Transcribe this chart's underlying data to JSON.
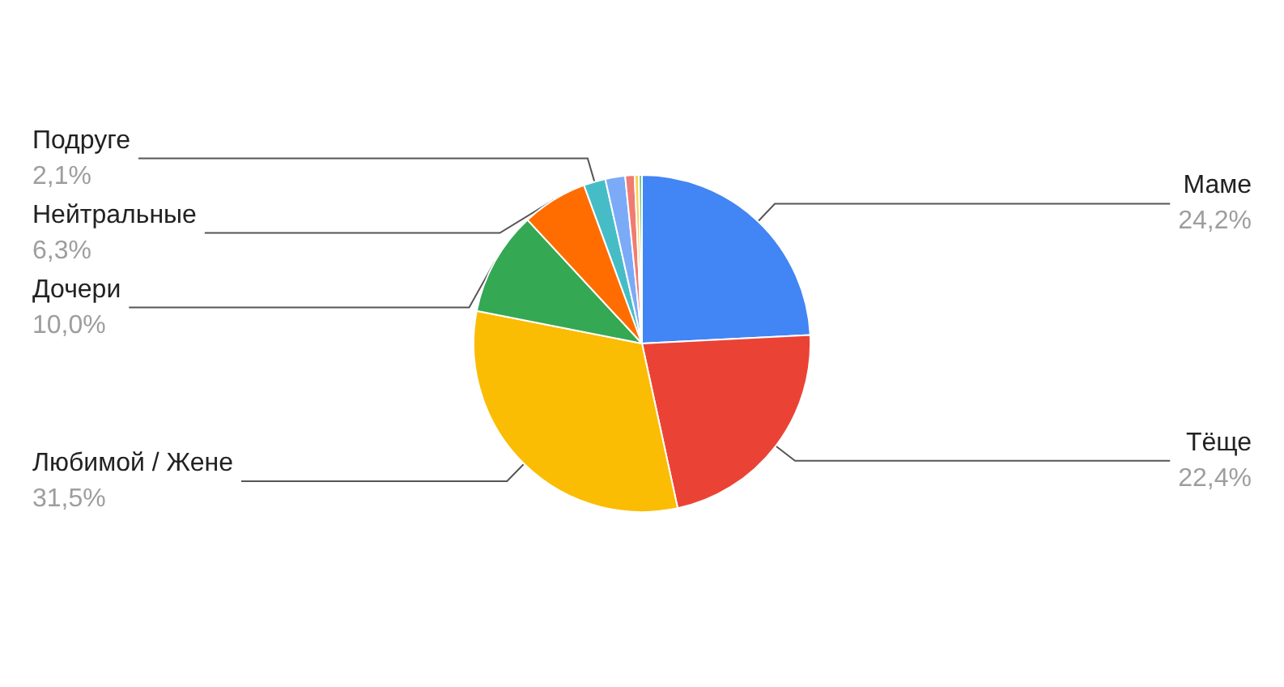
{
  "chart_data": {
    "type": "pie",
    "categories": [
      "Маме",
      "Тёще",
      "Любимой / Жене",
      "Дочери",
      "Нейтральные",
      "Подруге",
      null,
      null,
      null,
      null
    ],
    "values": [
      24.2,
      22.4,
      31.5,
      10.0,
      6.3,
      2.1,
      1.9,
      0.9,
      0.4,
      0.3
    ],
    "value_labels": [
      "24,2%",
      "22,4%",
      "31,5%",
      "10,0%",
      "6,3%",
      "2,1%",
      null,
      null,
      null,
      null
    ],
    "colors": [
      "#4285f4",
      "#ea4335",
      "#fbbc04",
      "#34a853",
      "#ff6d01",
      "#46bdc6",
      "#7baaf7",
      "#f07b72",
      "#fcd04f",
      "#71c287"
    ],
    "legend": false
  }
}
